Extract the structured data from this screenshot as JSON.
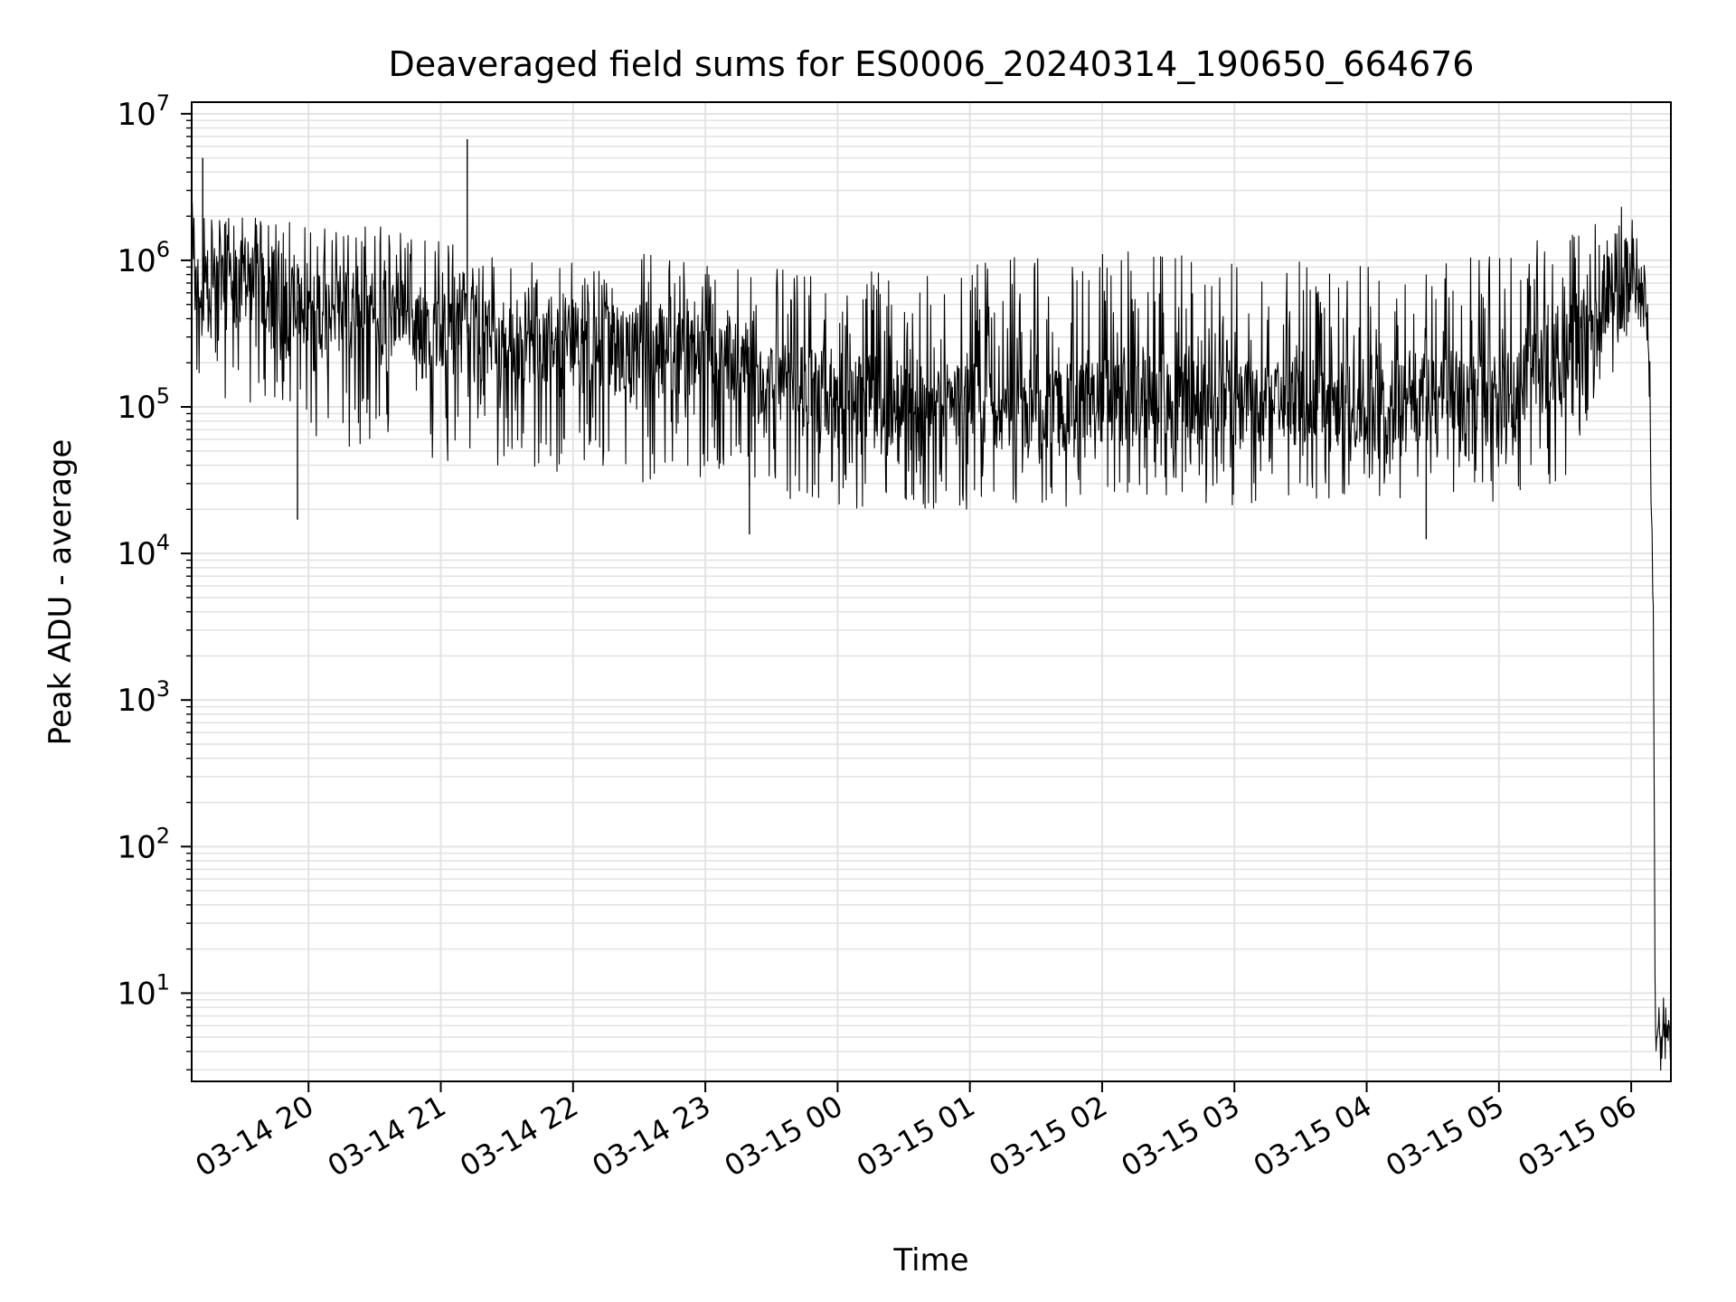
{
  "chart_data": {
    "type": "line",
    "title": "Deaveraged field sums for ES0006_20240314_190650_664676",
    "xlabel": "Time",
    "ylabel": "Peak ADU - average",
    "x_scale": "time",
    "y_scale": "log",
    "x_range": [
      "2024-03-14 19:07",
      "2024-03-15 06:18"
    ],
    "y_range": [
      2.5,
      12000000
    ],
    "x_ticks": [
      "2024-03-14 20:00",
      "2024-03-14 21:00",
      "2024-03-14 22:00",
      "2024-03-14 23:00",
      "2024-03-15 00:00",
      "2024-03-15 01:00",
      "2024-03-15 02:00",
      "2024-03-15 03:00",
      "2024-03-15 04:00",
      "2024-03-15 05:00",
      "2024-03-15 06:00"
    ],
    "x_tick_labels": [
      "03-14 20",
      "03-14 21",
      "03-14 22",
      "03-14 23",
      "03-15 00",
      "03-15 01",
      "03-15 02",
      "03-15 03",
      "03-15 04",
      "03-15 05",
      "03-15 06"
    ],
    "y_ticks": [
      1,
      2,
      3,
      4,
      5,
      6,
      7
    ],
    "y_tick_base": "10",
    "grid": true,
    "line_color": "#000000",
    "grid_color": "#e3e3e3",
    "series": [
      {
        "x": [
          "2024-03-14 19:07",
          "2024-03-14 19:30",
          "2024-03-14 20:00",
          "2024-03-14 20:30",
          "2024-03-14 21:00",
          "2024-03-14 21:30",
          "2024-03-14 22:00",
          "2024-03-14 22:30",
          "2024-03-14 23:00",
          "2024-03-14 23:30",
          "2024-03-15 00:00",
          "2024-03-15 00:30",
          "2024-03-15 01:00",
          "2024-03-15 01:30",
          "2024-03-15 02:00",
          "2024-03-15 02:30",
          "2024-03-15 03:00",
          "2024-03-15 03:30",
          "2024-03-15 04:00",
          "2024-03-15 04:30",
          "2024-03-15 05:00",
          "2024-03-15 05:30",
          "2024-03-15 06:00",
          "2024-03-15 06:05",
          "2024-03-15 06:08",
          "2024-03-15 06:10",
          "2024-03-15 06:11",
          "2024-03-15 06:12",
          "2024-03-15 06:18"
        ],
        "values": [
          600000,
          700000,
          500000,
          450000,
          350000,
          280000,
          300000,
          260000,
          220000,
          150000,
          120000,
          110000,
          100000,
          90000,
          110000,
          120000,
          105000,
          110000,
          100000,
          120000,
          130000,
          220000,
          800000,
          700000,
          300000,
          3000,
          5,
          5,
          5
        ],
        "low": [
          150000,
          100000,
          60000,
          50000,
          40000,
          35000,
          35000,
          30000,
          30000,
          25000,
          20000,
          20000,
          18000,
          20000,
          22000,
          25000,
          20000,
          22000,
          22000,
          25000,
          22000,
          30000,
          250000,
          250000,
          200000,
          3000,
          5,
          5,
          5
        ],
        "high": [
          2500000,
          2000000,
          1800000,
          1800000,
          1500000,
          1000000,
          1000000,
          1200000,
          1000000,
          900000,
          700000,
          1000000,
          1000000,
          1100000,
          1200000,
          1100000,
          1000000,
          1000000,
          900000,
          1100000,
          1200000,
          1500000,
          2500000,
          1500000,
          400000,
          3000,
          6,
          6,
          6
        ],
        "spikes": [
          {
            "x": "2024-03-14 19:12",
            "value": 5000000
          },
          {
            "x": "2024-03-14 21:12",
            "value": 6700000
          },
          {
            "x": "2024-03-14 19:55",
            "value": 17000
          },
          {
            "x": "2024-03-14 23:20",
            "value": 13500
          },
          {
            "x": "2024-03-15 04:27",
            "value": 12500
          }
        ]
      }
    ]
  }
}
